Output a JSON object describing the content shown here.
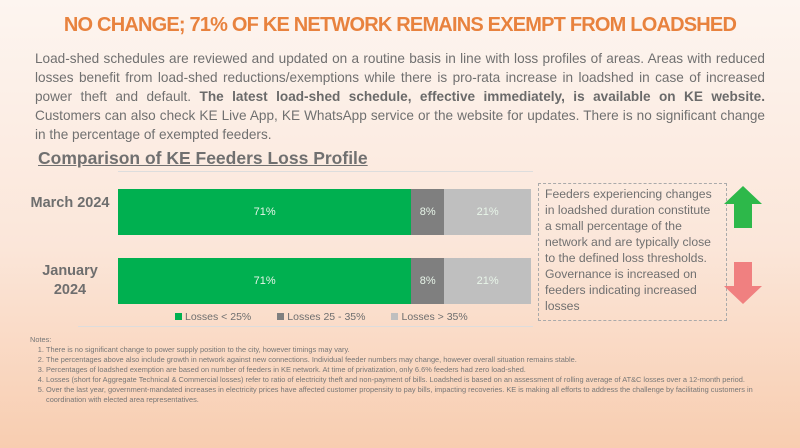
{
  "title": "NO CHANGE; 71% OF KE NETWORK REMAINS EXEMPT FROM LOADSHED",
  "intro": {
    "text1": "Load-shed schedules are reviewed and updated on a routine basis in line with loss profiles of areas. Areas with reduced losses benefit from load-shed reductions/exemptions while there is pro-rata increase in loadshed in case of increased power theft and default. ",
    "bold": "The latest load-shed schedule, effective immediately, is available on KE website.",
    "text2": " Customers can also check KE Live App, KE WhatsApp service or the website for updates. There is no significant change in the percentage of exempted feeders."
  },
  "chart_data": {
    "type": "bar",
    "stacked": true,
    "orientation": "horizontal",
    "title": "Comparison of KE Feeders Loss Profile",
    "categories": [
      "March 2024",
      "January 2024"
    ],
    "series": [
      {
        "name": "Losses < 25%",
        "color": "#00b050",
        "values": [
          71,
          71
        ],
        "labels": [
          "71%",
          "71%"
        ]
      },
      {
        "name": "Losses 25 - 35%",
        "color": "#7f7f7f",
        "values": [
          8,
          8
        ],
        "labels": [
          "8%",
          "8%"
        ]
      },
      {
        "name": "Losses > 35%",
        "color": "#bfbfbf",
        "values": [
          21,
          21
        ],
        "labels": [
          "21%",
          "21%"
        ]
      }
    ],
    "xlim": [
      0,
      100
    ],
    "legend": "bottom"
  },
  "callout": "Feeders experiencing changes in loadshed duration constitute a small percentage of the network and are typically close to the defined loss thresholds. Governance is increased on feeders indicating increased losses",
  "arrows": {
    "up_color": "#2db84a",
    "down_color": "#f08080"
  },
  "notes": {
    "heading": "Notes:",
    "items": [
      "There is no significant change to power supply position to the city, however timings may vary.",
      "The percentages above also include growth in network against new connections.  Individual feeder numbers may change, however overall situation remains stable.",
      "Percentages of loadshed exemption are based on number of feeders in KE network.  At time of privatization, only 6.6% feeders had zero load-shed.",
      "Losses (short for Aggregate Technical & Commercial losses) refer to ratio of electricity theft and non-payment of bills. Loadshed is based on an assessment of rolling average of AT&C losses over a 12-month period.",
      "Over the last year, government-mandated increases in electricity prices have affected customer propensity to pay bills, impacting recoveries. KE is making all efforts to address the challenge by facilitating customers in coordination with elected area representatives."
    ]
  }
}
